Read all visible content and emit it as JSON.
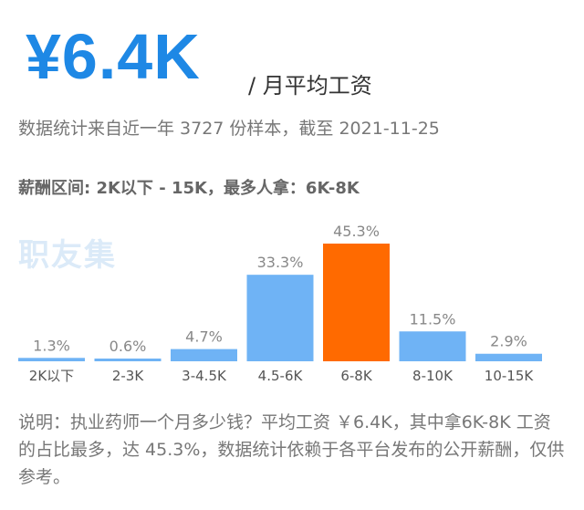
{
  "header": {
    "salary": "¥6.4K",
    "unit": "/ 月平均工资",
    "stats": "数据统计来自近一年 3727 份样本，截至 2021-11-25",
    "range": "薪酬区间: 2K以下 - 15K，最多人拿：6K-8K"
  },
  "watermark": "职友集",
  "chart_data": {
    "type": "bar",
    "categories": [
      "2K以下",
      "2-3K",
      "3-4.5K",
      "4.5-6K",
      "6-8K",
      "8-10K",
      "10-15K"
    ],
    "values": [
      1.3,
      0.6,
      4.7,
      33.3,
      45.3,
      11.5,
      2.9
    ],
    "value_labels": [
      "1.3%",
      "0.6%",
      "4.7%",
      "33.3%",
      "45.3%",
      "11.5%",
      "2.9%"
    ],
    "unit": "%",
    "highlight_category": "6-8K",
    "colors": {
      "bar": "#6fb3f5",
      "highlight": "#ff6a00",
      "label": "#888888"
    }
  },
  "note": "说明：执业药师一个月多少钱？平均工资 ￥6.4K，其中拿6K-8K 工资的占比最多，达 45.3%，数据统计依赖于各平台发布的公开薪酬，仅供参考。"
}
